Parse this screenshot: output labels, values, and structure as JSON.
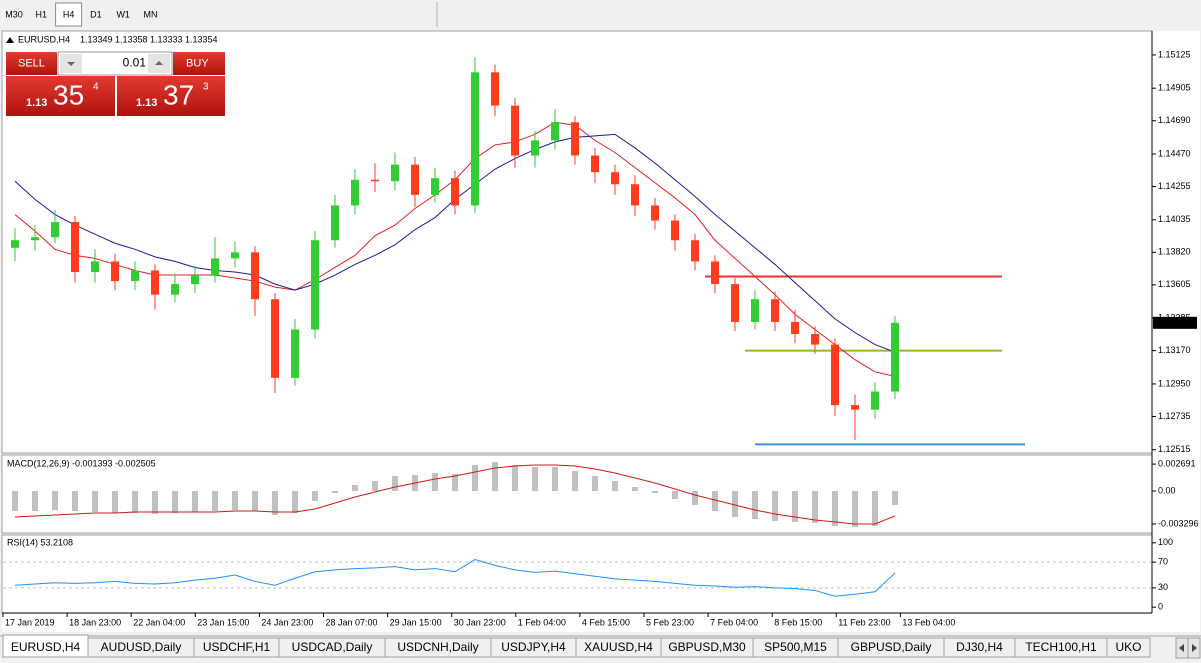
{
  "toolbar": {
    "timeframes": [
      "M30",
      "H1",
      "H4",
      "D1",
      "W1",
      "MN"
    ],
    "active_index": 2
  },
  "header": {
    "symbol": "EURUSD,H4",
    "ohlc": [
      1.13349,
      1.13358,
      1.13333,
      1.13354
    ]
  },
  "trade_panel": {
    "sell": "SELL",
    "buy": "BUY",
    "lot": 0.01,
    "bid": {
      "prefix": "1.13",
      "main": "35",
      "small": "4"
    },
    "ask": {
      "prefix": "1.13",
      "main": "37",
      "small": "3"
    }
  },
  "chart_data": [
    {
      "type": "candlestick",
      "up_color": "#32cd32",
      "down_color": "#ff3c1e",
      "candles": [
        [
          1.1385,
          1.1398,
          1.1376,
          1.139
        ],
        [
          1.139,
          1.14,
          1.1383,
          1.1392
        ],
        [
          1.1392,
          1.141,
          1.1388,
          1.1402
        ],
        [
          1.1402,
          1.1406,
          1.1362,
          1.1369
        ],
        [
          1.1369,
          1.1384,
          1.1362,
          1.1376
        ],
        [
          1.1376,
          1.1381,
          1.1357,
          1.1363
        ],
        [
          1.1363,
          1.1376,
          1.1357,
          1.137
        ],
        [
          1.137,
          1.1374,
          1.1344,
          1.1354
        ],
        [
          1.1354,
          1.1368,
          1.1349,
          1.1361
        ],
        [
          1.1361,
          1.1373,
          1.1355,
          1.1367
        ],
        [
          1.1367,
          1.1392,
          1.1362,
          1.1378
        ],
        [
          1.1378,
          1.1389,
          1.1372,
          1.1382
        ],
        [
          1.1382,
          1.1386,
          1.134,
          1.1351
        ],
        [
          1.1351,
          1.1355,
          1.1289,
          1.1299
        ],
        [
          1.1299,
          1.1338,
          1.1294,
          1.1331
        ],
        [
          1.1331,
          1.1396,
          1.1325,
          1.139
        ],
        [
          1.139,
          1.142,
          1.1385,
          1.1413
        ],
        [
          1.1413,
          1.1437,
          1.1407,
          1.143
        ],
        [
          1.143,
          1.1441,
          1.1422,
          1.1429
        ],
        [
          1.1429,
          1.1448,
          1.1423,
          1.144
        ],
        [
          1.144,
          1.1445,
          1.1412,
          1.142
        ],
        [
          1.142,
          1.1438,
          1.1415,
          1.1431
        ],
        [
          1.1431,
          1.1436,
          1.1407,
          1.1413
        ],
        [
          1.1413,
          1.1511,
          1.1408,
          1.1501
        ],
        [
          1.1501,
          1.1506,
          1.1472,
          1.1479
        ],
        [
          1.1479,
          1.1484,
          1.1438,
          1.1446
        ],
        [
          1.1446,
          1.1462,
          1.1438,
          1.1456
        ],
        [
          1.1456,
          1.1477,
          1.145,
          1.1468
        ],
        [
          1.1468,
          1.1472,
          1.144,
          1.1446
        ],
        [
          1.1446,
          1.1451,
          1.1428,
          1.1435
        ],
        [
          1.1435,
          1.144,
          1.142,
          1.1427
        ],
        [
          1.1427,
          1.1433,
          1.1406,
          1.1413
        ],
        [
          1.1413,
          1.1418,
          1.1397,
          1.1403
        ],
        [
          1.1403,
          1.1407,
          1.1383,
          1.139
        ],
        [
          1.139,
          1.1394,
          1.137,
          1.1376
        ],
        [
          1.1376,
          1.138,
          1.1355,
          1.1361
        ],
        [
          1.1361,
          1.1365,
          1.133,
          1.1336
        ],
        [
          1.1336,
          1.1357,
          1.1331,
          1.1351
        ],
        [
          1.1351,
          1.1356,
          1.133,
          1.1336
        ],
        [
          1.1336,
          1.1344,
          1.1322,
          1.1328
        ],
        [
          1.1328,
          1.1333,
          1.1315,
          1.1321
        ],
        [
          1.1321,
          1.1325,
          1.1274,
          1.1281
        ],
        [
          1.1281,
          1.1288,
          1.1258,
          1.1278
        ],
        [
          1.1278,
          1.1296,
          1.1272,
          1.129
        ],
        [
          1.129,
          1.134,
          1.1285,
          1.13354
        ]
      ],
      "series": [
        {
          "color": "#e02020",
          "values": [
            1.1407,
            1.1396,
            1.1384,
            1.138,
            1.1378,
            1.1374,
            1.137,
            1.1367,
            1.1367,
            1.1367,
            1.1367,
            1.1365,
            1.1363,
            1.1359,
            1.1357,
            1.1364,
            1.1372,
            1.138,
            1.1393,
            1.14,
            1.1411,
            1.142,
            1.143,
            1.1444,
            1.1453,
            1.1455,
            1.146,
            1.1468,
            1.1466,
            1.1456,
            1.1448,
            1.1438,
            1.1428,
            1.1418,
            1.1407,
            1.139,
            1.1378,
            1.1366,
            1.1354,
            1.1341,
            1.1331,
            1.1321,
            1.1311,
            1.1303,
            1.13
          ]
        },
        {
          "color": "#1a1aa0",
          "values": [
            1.1429,
            1.1417,
            1.1407,
            1.14,
            1.1394,
            1.1388,
            1.1384,
            1.1379,
            1.1376,
            1.1372,
            1.137,
            1.1369,
            1.1367,
            1.1361,
            1.1357,
            1.1361,
            1.1367,
            1.1374,
            1.138,
            1.1387,
            1.1397,
            1.1405,
            1.1417,
            1.1427,
            1.1437,
            1.1444,
            1.145,
            1.1455,
            1.1458,
            1.1459,
            1.146,
            1.1451,
            1.1441,
            1.143,
            1.1419,
            1.1407,
            1.1396,
            1.1385,
            1.1374,
            1.1362,
            1.135,
            1.1338,
            1.1329,
            1.1321,
            1.1316
          ]
        }
      ],
      "hlines": [
        {
          "value": 1.1366,
          "color": "#e83030"
        },
        {
          "value": 1.1317,
          "color": "#9ab81a"
        },
        {
          "value": 1.1255,
          "color": "#3a8fe0"
        }
      ],
      "last_price": {
        "value": 1.13354,
        "label": "1.13354"
      },
      "ylim": [
        1.125,
        1.1527
      ],
      "yticks": [
        {
          "value": 1.15125,
          "label": "1.15125"
        },
        {
          "value": 1.14905,
          "label": "1.14905"
        },
        {
          "value": 1.1469,
          "label": "1.14690"
        },
        {
          "value": 1.1447,
          "label": "1.14470"
        },
        {
          "value": 1.14255,
          "label": "1.14255"
        },
        {
          "value": 1.14035,
          "label": "1.14035"
        },
        {
          "value": 1.1382,
          "label": "1.13820"
        },
        {
          "value": 1.13605,
          "label": "1.13605"
        },
        {
          "value": 1.13385,
          "label": "1.13385"
        },
        {
          "value": 1.1317,
          "label": "1.13170"
        },
        {
          "value": 1.1295,
          "label": "1.12950"
        },
        {
          "value": 1.12735,
          "label": "1.12735"
        },
        {
          "value": 1.12515,
          "label": "1.12515"
        }
      ],
      "xtick_labels": [
        "17 Jan 2019",
        "18 Jan 23:00",
        "22 Jan 04:00",
        "23 Jan 15:00",
        "24 Jan 23:00",
        "28 Jan 07:00",
        "29 Jan 15:00",
        "30 Jan 23:00",
        "1 Feb 04:00",
        "4 Feb 15:00",
        "5 Feb 23:00",
        "7 Feb 04:00",
        "8 Feb 15:00",
        "11 Feb 23:00",
        "13 Feb 04:00"
      ]
    },
    {
      "type": "macd",
      "title": "MACD(12,26,9) -0.001393 -0.002505",
      "series": [
        {
          "type": "bar",
          "color": "#c0c0c0",
          "values": [
            -0.002,
            -0.002,
            -0.0019,
            -0.002,
            -0.0021,
            -0.0022,
            -0.0022,
            -0.0023,
            -0.0022,
            -0.0021,
            -0.002,
            -0.0019,
            -0.002,
            -0.0024,
            -0.0022,
            -0.001,
            -0.0002,
            0.0006,
            0.001,
            0.0015,
            0.0016,
            0.0018,
            0.0017,
            0.0026,
            0.0029,
            0.0026,
            0.0024,
            0.0024,
            0.002,
            0.0015,
            0.001,
            0.0004,
            -0.0002,
            -0.0008,
            -0.0014,
            -0.002,
            -0.0026,
            -0.0028,
            -0.003,
            -0.0031,
            -0.0032,
            -0.0035,
            -0.0036,
            -0.0035,
            -0.0014
          ]
        },
        {
          "type": "line",
          "color": "#d01818",
          "values": [
            -0.0026,
            -0.0025,
            -0.0024,
            -0.0023,
            -0.0022,
            -0.0022,
            -0.0021,
            -0.0021,
            -0.0021,
            -0.0021,
            -0.0021,
            -0.002,
            -0.002,
            -0.0021,
            -0.0021,
            -0.0018,
            -0.0012,
            -0.0006,
            -0.0001,
            0.0004,
            0.0008,
            0.0012,
            0.0015,
            0.0019,
            0.0023,
            0.0025,
            0.0026,
            0.0026,
            0.0025,
            0.0022,
            0.0018,
            0.0013,
            0.0008,
            0.0002,
            -0.0004,
            -0.0009,
            -0.0014,
            -0.0019,
            -0.0023,
            -0.0026,
            -0.0029,
            -0.0031,
            -0.0033,
            -0.0033,
            -0.0025
          ]
        }
      ],
      "ylim": [
        -0.0041,
        0.0033
      ],
      "yticks": [
        0.002691,
        {
          "value": 0,
          "label": "0.00"
        },
        -0.003296
      ]
    },
    {
      "type": "rsi",
      "title": "RSI(14) 53.2108",
      "series": [
        {
          "type": "line",
          "color": "#1e90ff",
          "values": [
            34,
            36,
            38,
            37,
            38,
            40,
            37,
            36,
            38,
            42,
            45,
            50,
            40,
            34,
            45,
            55,
            58,
            60,
            61,
            63,
            58,
            60,
            55,
            74,
            65,
            58,
            54,
            56,
            52,
            48,
            44,
            42,
            40,
            37,
            34,
            33,
            31,
            32,
            30,
            29,
            26,
            17,
            20,
            24,
            53
          ]
        }
      ],
      "levels": [
        70,
        30
      ],
      "ylim": [
        -7.5,
        107.5
      ],
      "yticks": [
        100,
        70,
        30,
        0
      ]
    }
  ],
  "tabs": [
    "EURUSD,H4",
    "AUDUSD,Daily",
    "USDCHF,H1",
    "USDCAD,Daily",
    "USDCNH,Daily",
    "USDJPY,H4",
    "XAUUSD,H4",
    "GBPUSD,M30",
    "SP500,M15",
    "GBPUSD,Daily",
    "DJ30,H4",
    "TECH100,H1",
    "UKO"
  ],
  "active_tab": 0
}
